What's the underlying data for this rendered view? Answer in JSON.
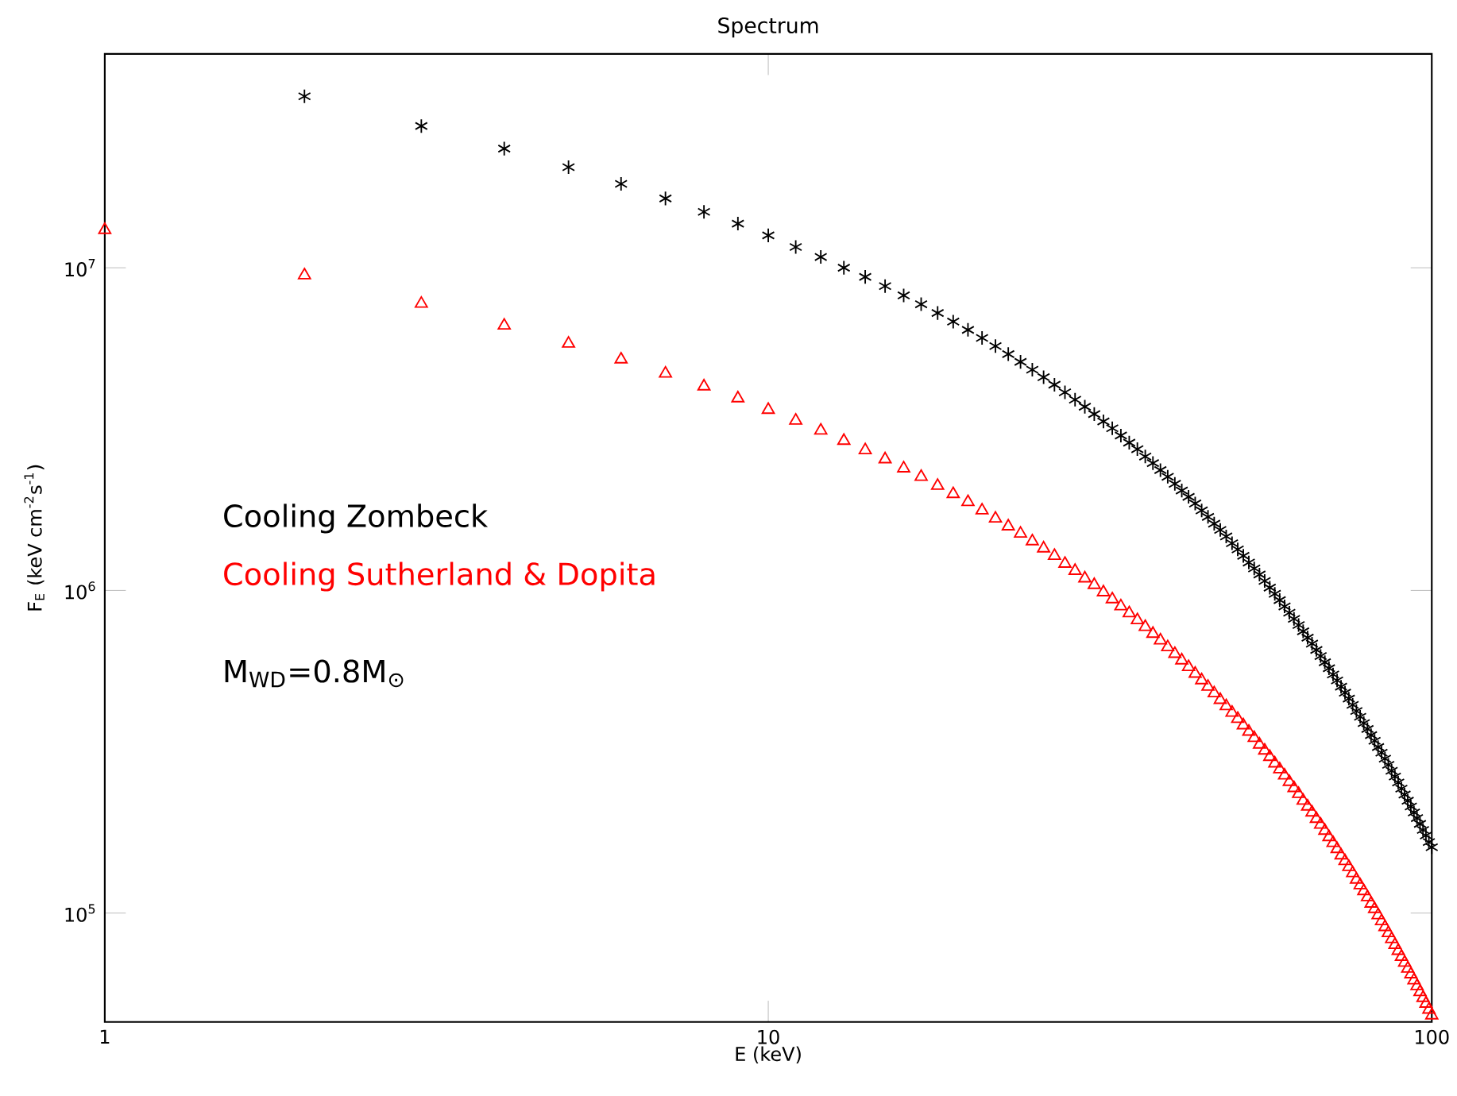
{
  "chart_data": {
    "type": "scatter",
    "title": "Spectrum",
    "xlabel": "E (keV)",
    "ylabel": "F$_{E}$ (keV cm$^{-2}$s$^{-1}$)",
    "log": "xy",
    "xlim": [
      1,
      100
    ],
    "ylim": [
      46000,
      46000000
    ],
    "xticks": [
      1,
      10,
      100
    ],
    "yticks": [
      {
        "value": 100000,
        "label": "10$^{5}$"
      },
      {
        "value": 1000000,
        "label": "10$^{6}$"
      },
      {
        "value": 10000000,
        "label": "10$^{7}$"
      }
    ],
    "legend": "left",
    "annotations": [
      "M$_{WD}$=0.8M$_{⊙}$"
    ],
    "series": [
      {
        "name": "Cooling Zombeck",
        "color": "#000000",
        "marker": "cross",
        "x": [
          2,
          3,
          4,
          5,
          6,
          7,
          8,
          9,
          10,
          11,
          12,
          13,
          14,
          15,
          16,
          17,
          18,
          19,
          20,
          21,
          22,
          23,
          24,
          25,
          26,
          27,
          28,
          29,
          30,
          31,
          32,
          33,
          34,
          35,
          36,
          37,
          38,
          39,
          40,
          41,
          42,
          43,
          44,
          45,
          46,
          47,
          48,
          49,
          50,
          51,
          52,
          53,
          54,
          55,
          56,
          57,
          58,
          59,
          60,
          61,
          62,
          63,
          64,
          65,
          66,
          67,
          68,
          69,
          70,
          71,
          72,
          73,
          74,
          75,
          76,
          77,
          78,
          79,
          80,
          81,
          82,
          83,
          84,
          85,
          86,
          87,
          88,
          89,
          90,
          91,
          92,
          93,
          94,
          95,
          96,
          97,
          98,
          99,
          100
        ],
        "values": [
          34000000,
          27500000,
          23400000,
          20500000,
          18200000,
          16400000,
          14900000,
          13700000,
          12600000,
          11600000,
          10800000,
          10000000,
          9370000,
          8770000,
          8210000,
          7710000,
          7240000,
          6810000,
          6420000,
          6060000,
          5720000,
          5400000,
          5110000,
          4830000,
          4580000,
          4340000,
          4110000,
          3900000,
          3710000,
          3520000,
          3340000,
          3180000,
          3020000,
          2870000,
          2740000,
          2600000,
          2480000,
          2360000,
          2250000,
          2140000,
          2040000,
          1950000,
          1860000,
          1770000,
          1690000,
          1610000,
          1540000,
          1470000,
          1400000,
          1340000,
          1280000,
          1220000,
          1170000,
          1120000,
          1070000,
          1020000,
          976000,
          933000,
          892000,
          853000,
          816000,
          781000,
          747000,
          714000,
          684000,
          654000,
          626000,
          599000,
          574000,
          549000,
          526000,
          503000,
          482000,
          462000,
          442000,
          423000,
          406000,
          388000,
          372000,
          356000,
          342000,
          327000,
          314000,
          301000,
          288000,
          276000,
          265000,
          254000,
          243000,
          233000,
          223000,
          214000,
          205000,
          197000,
          189000,
          181000,
          174000,
          166000,
          160000
        ]
      },
      {
        "name": "Cooling Sutherland & Dopita",
        "color": "#ff0000",
        "marker": "triangle",
        "x": [
          1,
          2,
          3,
          4,
          5,
          6,
          7,
          8,
          9,
          10,
          11,
          12,
          13,
          14,
          15,
          16,
          17,
          18,
          19,
          20,
          21,
          22,
          23,
          24,
          25,
          26,
          27,
          28,
          29,
          30,
          31,
          32,
          33,
          34,
          35,
          36,
          37,
          38,
          39,
          40,
          41,
          42,
          43,
          44,
          45,
          46,
          47,
          48,
          49,
          50,
          51,
          52,
          53,
          54,
          55,
          56,
          57,
          58,
          59,
          60,
          61,
          62,
          63,
          64,
          65,
          66,
          67,
          68,
          69,
          70,
          71,
          72,
          73,
          74,
          75,
          76,
          77,
          78,
          79,
          80,
          81,
          82,
          83,
          84,
          85,
          86,
          87,
          88,
          89,
          90,
          91,
          92,
          93,
          94,
          95,
          96,
          97,
          98,
          99,
          100
        ],
        "values": [
          13100000,
          9480000,
          7740000,
          6620000,
          5820000,
          5200000,
          4700000,
          4290000,
          3940000,
          3630000,
          3360000,
          3130000,
          2910000,
          2720000,
          2550000,
          2390000,
          2250000,
          2110000,
          1990000,
          1880000,
          1770000,
          1670000,
          1580000,
          1500000,
          1420000,
          1350000,
          1280000,
          1210000,
          1150000,
          1090000,
          1040000,
          987000,
          939000,
          893000,
          850000,
          809000,
          771000,
          734000,
          700000,
          667000,
          636000,
          607000,
          579000,
          552000,
          527000,
          503000,
          480000,
          458000,
          438000,
          418000,
          400000,
          382000,
          365000,
          349000,
          333000,
          319000,
          305000,
          291000,
          279000,
          267000,
          255000,
          244000,
          234000,
          223000,
          214000,
          205000,
          196000,
          188000,
          180000,
          172000,
          165000,
          158000,
          151000,
          145000,
          139000,
          133000,
          127000,
          122000,
          117000,
          112000,
          107000,
          103000,
          98500,
          94400,
          90500,
          86700,
          83100,
          79700,
          76400,
          73200,
          70200,
          67300,
          64600,
          61900,
          59400,
          56900,
          54600,
          52400,
          50200,
          48200
        ]
      }
    ]
  }
}
